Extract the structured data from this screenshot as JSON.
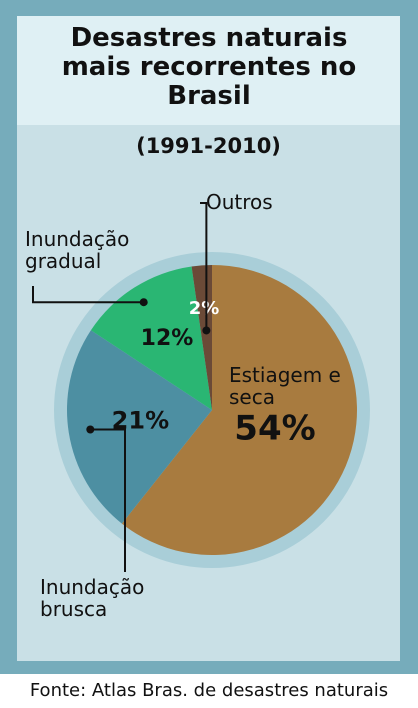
{
  "chart_data": {
    "type": "pie",
    "title": "Desastres naturais mais recorrentes no Brasil",
    "subtitle": "(1991-2010)",
    "categories": [
      "Estiagem e seca",
      "Inundação brusca",
      "Inundação gradual",
      "Outros"
    ],
    "values": [
      54,
      21,
      12,
      2
    ],
    "value_labels": [
      "54%",
      "21%",
      "12%",
      "2%"
    ],
    "colors": [
      "#a87b3f",
      "#4d8fa2",
      "#2ab673",
      "#6b4a37"
    ],
    "source": "Fonte: Atlas Bras. de desastres naturais"
  }
}
